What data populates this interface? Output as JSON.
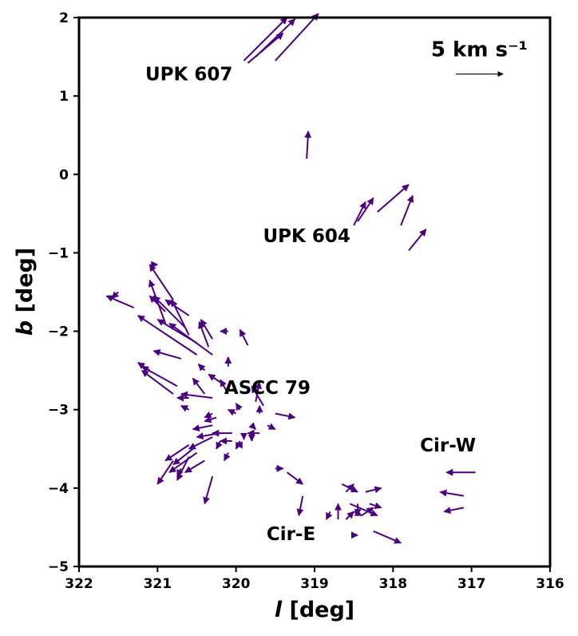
{
  "chart_data": {
    "type": "scatter",
    "subtype": "quiver",
    "title": "",
    "xlabel_var": "l",
    "xlabel_unit": "[deg]",
    "ylabel_var": "b",
    "ylabel_unit": "[deg]",
    "xlim": [
      322,
      316
    ],
    "ylim": [
      -5,
      2
    ],
    "x_reversed": true,
    "xticks": [
      322,
      321,
      320,
      319,
      318,
      317,
      316
    ],
    "xtick_labels": [
      "322",
      "321",
      "320",
      "319",
      "318",
      "317",
      "316"
    ],
    "yticks": [
      2,
      1,
      0,
      -1,
      -2,
      -3,
      -4,
      -5
    ],
    "ytick_labels": [
      "2",
      "1",
      "0",
      "−1",
      "−2",
      "−3",
      "−4",
      "−5"
    ],
    "grid": false,
    "arrow_color": "#4b0082",
    "scale_arrow": {
      "label": "5 km s⁻¹",
      "length_kms": 5,
      "l": 317.2,
      "b": 1.28,
      "dl": -0.6,
      "db": 0
    },
    "annotations": [
      {
        "text": "UPK 607",
        "l": 320.6,
        "b": 1.28
      },
      {
        "text": "UPK 604",
        "l": 319.1,
        "b": -0.78
      },
      {
        "text": "ASCC 79",
        "l": 319.6,
        "b": -2.72
      },
      {
        "text": "Cir-W",
        "l": 317.3,
        "b": -3.45
      },
      {
        "text": "Cir-E",
        "l": 319.3,
        "b": -4.58
      }
    ],
    "vectors": [
      {
        "l": 319.9,
        "b": 1.45,
        "dl": -0.55,
        "db": 0.55
      },
      {
        "l": 319.85,
        "b": 1.42,
        "dl": -0.45,
        "db": 0.38
      },
      {
        "l": 319.75,
        "b": 1.5,
        "dl": -0.5,
        "db": 0.48
      },
      {
        "l": 319.5,
        "b": 1.45,
        "dl": -0.55,
        "db": 0.6
      },
      {
        "l": 319.1,
        "b": 0.2,
        "dl": -0.02,
        "db": 0.35
      },
      {
        "l": 318.5,
        "b": -0.65,
        "dl": -0.15,
        "db": 0.3
      },
      {
        "l": 318.45,
        "b": -0.6,
        "dl": -0.2,
        "db": 0.3
      },
      {
        "l": 318.2,
        "b": -0.48,
        "dl": -0.4,
        "db": 0.35
      },
      {
        "l": 317.9,
        "b": -0.65,
        "dl": -0.15,
        "db": 0.38
      },
      {
        "l": 317.8,
        "b": -0.97,
        "dl": -0.22,
        "db": 0.27
      },
      {
        "l": 321.5,
        "b": -1.5,
        "dl": 0.08,
        "db": -0.08
      },
      {
        "l": 320.9,
        "b": -1.9,
        "dl": 0.2,
        "db": 0.55
      },
      {
        "l": 320.8,
        "b": -1.6,
        "dl": 0.3,
        "db": 0.45
      },
      {
        "l": 320.6,
        "b": -2.05,
        "dl": 0.22,
        "db": 0.45
      },
      {
        "l": 320.65,
        "b": -1.95,
        "dl": 0.4,
        "db": 0.4
      },
      {
        "l": 320.9,
        "b": -1.75,
        "dl": 0.2,
        "db": 0.2
      },
      {
        "l": 320.6,
        "b": -1.8,
        "dl": 0.3,
        "db": 0.2
      },
      {
        "l": 320.5,
        "b": -2.3,
        "dl": 0.75,
        "db": 0.5
      },
      {
        "l": 320.5,
        "b": -2.15,
        "dl": 0.5,
        "db": 0.3
      },
      {
        "l": 320.3,
        "b": -2.3,
        "dl": 0.55,
        "db": 0.4
      },
      {
        "l": 320.7,
        "b": -2.35,
        "dl": 0.35,
        "db": 0.1
      },
      {
        "l": 320.75,
        "b": -2.7,
        "dl": 0.45,
        "db": 0.25
      },
      {
        "l": 320.8,
        "b": -2.8,
        "dl": 0.4,
        "db": 0.3
      },
      {
        "l": 320.35,
        "b": -2.2,
        "dl": 0.12,
        "db": 0.32
      },
      {
        "l": 320.3,
        "b": -2.1,
        "dl": 0.15,
        "db": 0.25
      },
      {
        "l": 320.1,
        "b": -2.0,
        "dl": 0.1,
        "db": 0.0
      },
      {
        "l": 319.85,
        "b": -2.18,
        "dl": 0.1,
        "db": 0.2
      },
      {
        "l": 320.4,
        "b": -2.5,
        "dl": 0.08,
        "db": 0.08
      },
      {
        "l": 320.2,
        "b": -2.65,
        "dl": 0.15,
        "db": 0.1
      },
      {
        "l": 320.4,
        "b": -2.8,
        "dl": 0.15,
        "db": 0.2
      },
      {
        "l": 320.1,
        "b": -2.45,
        "dl": 0.0,
        "db": 0.12
      },
      {
        "l": 320.1,
        "b": -2.8,
        "dl": 0.1,
        "db": 0.18
      },
      {
        "l": 320.6,
        "b": -2.85,
        "dl": 0.15,
        "db": 0.0
      },
      {
        "l": 320.3,
        "b": -2.85,
        "dl": 0.4,
        "db": 0.05
      },
      {
        "l": 320.6,
        "b": -3.0,
        "dl": 0.1,
        "db": 0.05
      },
      {
        "l": 320.3,
        "b": -3.05,
        "dl": 0.1,
        "db": -0.05
      },
      {
        "l": 320.25,
        "b": -3.1,
        "dl": 0.15,
        "db": -0.05
      },
      {
        "l": 320.3,
        "b": -3.2,
        "dl": 0.25,
        "db": -0.05
      },
      {
        "l": 320.2,
        "b": -3.3,
        "dl": 0.3,
        "db": -0.05
      },
      {
        "l": 320.05,
        "b": -3.3,
        "dl": 0.25,
        "db": 0.0
      },
      {
        "l": 319.95,
        "b": -3.0,
        "dl": 0.05,
        "db": 0.08
      },
      {
        "l": 320.0,
        "b": -3.05,
        "dl": 0.1,
        "db": 0.05
      },
      {
        "l": 319.75,
        "b": -2.9,
        "dl": -0.05,
        "db": 0.25
      },
      {
        "l": 319.65,
        "b": -2.95,
        "dl": 0.15,
        "db": 0.25
      },
      {
        "l": 319.7,
        "b": -3.05,
        "dl": 0.0,
        "db": 0.1
      },
      {
        "l": 319.8,
        "b": -3.2,
        "dl": -0.05,
        "db": -0.05
      },
      {
        "l": 319.9,
        "b": -3.3,
        "dl": 0.0,
        "db": -0.08
      },
      {
        "l": 319.6,
        "b": -3.2,
        "dl": -0.1,
        "db": -0.05
      },
      {
        "l": 319.5,
        "b": -3.05,
        "dl": -0.25,
        "db": -0.05
      },
      {
        "l": 319.7,
        "b": -3.3,
        "dl": 0.15,
        "db": 0.0
      },
      {
        "l": 319.8,
        "b": -3.35,
        "dl": 0.0,
        "db": -0.05
      },
      {
        "l": 319.95,
        "b": -3.4,
        "dl": 0.05,
        "db": -0.1
      },
      {
        "l": 320.05,
        "b": -3.4,
        "dl": 0.15,
        "db": 0.0
      },
      {
        "l": 320.2,
        "b": -3.4,
        "dl": 0.05,
        "db": -0.1
      },
      {
        "l": 320.3,
        "b": -3.35,
        "dl": 0.3,
        "db": -0.15
      },
      {
        "l": 320.6,
        "b": -3.45,
        "dl": 0.3,
        "db": -0.2
      },
      {
        "l": 320.5,
        "b": -3.55,
        "dl": 0.35,
        "db": -0.25
      },
      {
        "l": 320.55,
        "b": -3.5,
        "dl": 0.25,
        "db": -0.2
      },
      {
        "l": 320.4,
        "b": -3.65,
        "dl": 0.25,
        "db": -0.15
      },
      {
        "l": 320.8,
        "b": -3.65,
        "dl": 0.2,
        "db": -0.3
      },
      {
        "l": 320.7,
        "b": -3.75,
        "dl": 0.05,
        "db": -0.1
      },
      {
        "l": 320.6,
        "b": -3.6,
        "dl": 0.15,
        "db": -0.3
      },
      {
        "l": 320.1,
        "b": -3.55,
        "dl": 0.05,
        "db": -0.1
      },
      {
        "l": 320.3,
        "b": -3.85,
        "dl": 0.1,
        "db": -0.35
      },
      {
        "l": 319.95,
        "b": -3.45,
        "dl": 0.05,
        "db": 0.0
      },
      {
        "l": 319.5,
        "b": -3.75,
        "dl": -0.1,
        "db": 0.0
      },
      {
        "l": 319.35,
        "b": -3.8,
        "dl": -0.2,
        "db": -0.15
      },
      {
        "l": 319.15,
        "b": -4.1,
        "dl": 0.05,
        "db": -0.25
      },
      {
        "l": 318.8,
        "b": -4.3,
        "dl": 0.05,
        "db": -0.1
      },
      {
        "l": 318.6,
        "b": -4.05,
        "dl": -0.1,
        "db": 0.1
      },
      {
        "l": 318.55,
        "b": -4.2,
        "dl": -0.35,
        "db": -0.15
      },
      {
        "l": 318.5,
        "b": -4.3,
        "dl": -0.1,
        "db": -0.05
      },
      {
        "l": 318.6,
        "b": -4.4,
        "dl": -0.1,
        "db": 0.1
      },
      {
        "l": 318.7,
        "b": -4.4,
        "dl": 0.0,
        "db": 0.2
      },
      {
        "l": 318.65,
        "b": -3.95,
        "dl": -0.2,
        "db": -0.1
      },
      {
        "l": 318.35,
        "b": -4.05,
        "dl": -0.2,
        "db": 0.05
      },
      {
        "l": 318.4,
        "b": -4.35,
        "dl": -0.15,
        "db": 0.1
      },
      {
        "l": 318.45,
        "b": -4.2,
        "dl": 0.0,
        "db": -0.15
      },
      {
        "l": 318.3,
        "b": -4.2,
        "dl": -0.15,
        "db": -0.05
      },
      {
        "l": 318.25,
        "b": -4.55,
        "dl": -0.35,
        "db": -0.15
      },
      {
        "l": 318.5,
        "b": -4.6,
        "dl": -0.05,
        "db": 0.0
      },
      {
        "l": 316.95,
        "b": -3.8,
        "dl": 0.37,
        "db": 0.0
      },
      {
        "l": 317.1,
        "b": -4.1,
        "dl": 0.3,
        "db": 0.05
      },
      {
        "l": 317.1,
        "b": -4.25,
        "dl": 0.25,
        "db": -0.05
      },
      {
        "l": 321.1,
        "b": -2.5,
        "dl": 0.15,
        "db": 0.1
      },
      {
        "l": 321.3,
        "b": -1.7,
        "dl": 0.35,
        "db": 0.15
      },
      {
        "l": 321.0,
        "b": -1.15,
        "dl": 0.0,
        "db": 0.0
      }
    ]
  }
}
